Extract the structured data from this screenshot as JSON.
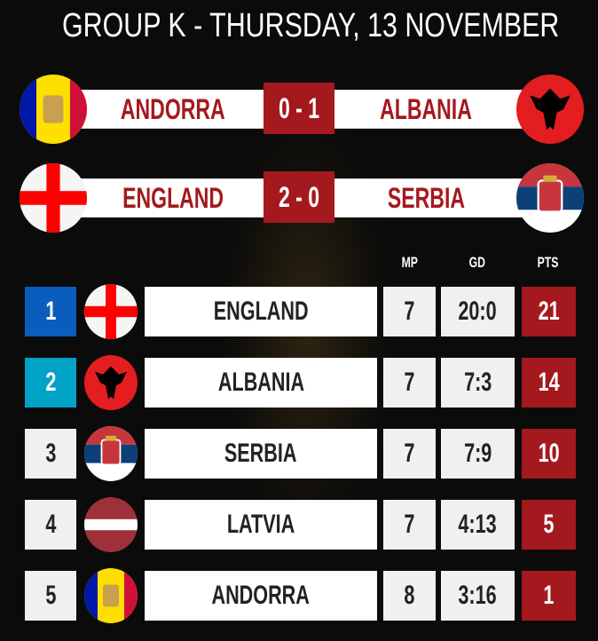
{
  "title": "GROUP K - THURSDAY, 13 NOVEMBER",
  "colors": {
    "accent": "#a4191e",
    "rank1": "#0a5cbd",
    "rank2": "#00a3c6",
    "cell": "#f0f0f0"
  },
  "matches": [
    {
      "home": "ANDORRA",
      "home_flag": "andorra-flag",
      "score": "0 - 1",
      "away": "ALBANIA",
      "away_flag": "albania-flag"
    },
    {
      "home": "ENGLAND",
      "home_flag": "england-flag",
      "score": "2 - 0",
      "away": "SERBIA",
      "away_flag": "serbia-flag"
    }
  ],
  "headers": {
    "mp": "MP",
    "gd": "GD",
    "pts": "PTS"
  },
  "standings": [
    {
      "rank": "1",
      "flag": "england-flag",
      "team": "ENGLAND",
      "mp": "7",
      "gd": "20:0",
      "pts": "21"
    },
    {
      "rank": "2",
      "flag": "albania-flag",
      "team": "ALBANIA",
      "mp": "7",
      "gd": "7:3",
      "pts": "14"
    },
    {
      "rank": "3",
      "flag": "serbia-flag",
      "team": "SERBIA",
      "mp": "7",
      "gd": "7:9",
      "pts": "10"
    },
    {
      "rank": "4",
      "flag": "latvia-flag",
      "team": "LATVIA",
      "mp": "7",
      "gd": "4:13",
      "pts": "5"
    },
    {
      "rank": "5",
      "flag": "andorra-flag",
      "team": "ANDORRA",
      "mp": "8",
      "gd": "3:16",
      "pts": "1"
    }
  ]
}
